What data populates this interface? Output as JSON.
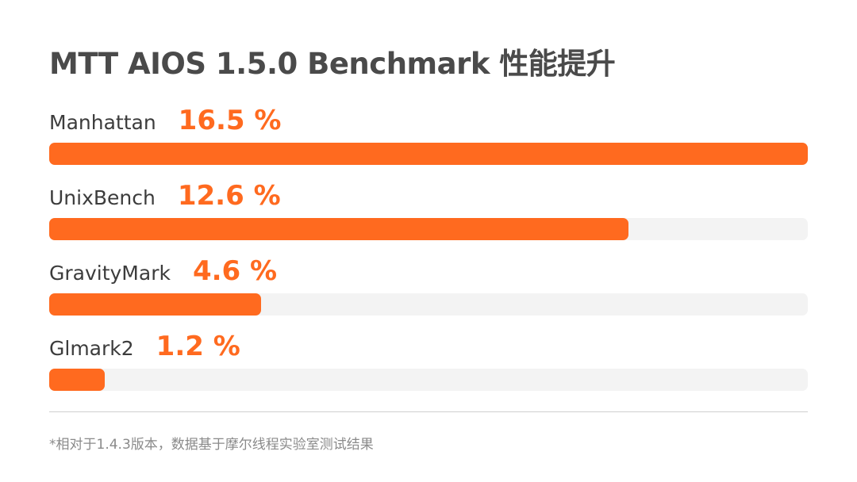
{
  "chart_data": {
    "type": "bar",
    "orientation": "horizontal",
    "title": "MTT AIOS 1.5.0 Benchmark 性能提升",
    "categories": [
      "Manhattan",
      "UnixBench",
      "GravityMark",
      "Glmark2"
    ],
    "values": [
      16.5,
      12.6,
      4.6,
      1.2
    ],
    "value_labels": [
      "16.5 %",
      "12.6 %",
      "4.6 %",
      "1.2 %"
    ],
    "xlim": [
      0,
      16.5
    ],
    "grid": false,
    "legend": "none",
    "footnote": "*相对于1.4.3版本，数据基于摩尔线程实验室测试结果"
  },
  "colors": {
    "bar": "#ff6a1f",
    "track": "#f3f3f3",
    "value_text": "#ff6a1f",
    "title_text": "#4a4a4a"
  }
}
